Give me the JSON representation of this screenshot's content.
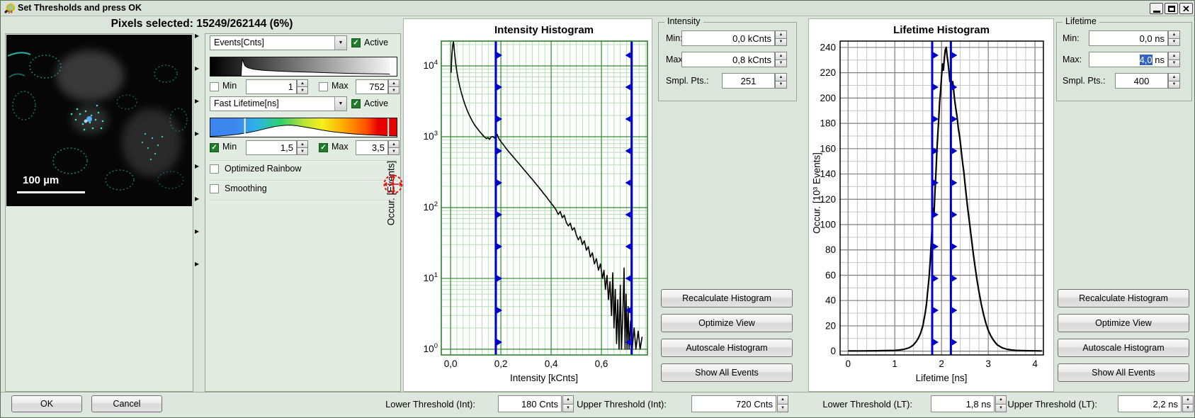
{
  "window": {
    "title": "Set Thresholds and press OK"
  },
  "icons": {
    "dropdown": "▼",
    "spin_up": "▲",
    "spin_down": "▼",
    "check": "✓",
    "triangle_right": "▶",
    "close": "✕"
  },
  "header": {
    "pixels_selected": "Pixels selected: 15249/262144 (6%)"
  },
  "image_panel": {
    "scale_bar": "100 µm"
  },
  "display_controls": {
    "channel1": {
      "name": "Events[Cnts]",
      "active_label": "Active",
      "active_checked": true,
      "min_label": "Min",
      "min_value": "1",
      "min_checked": false,
      "max_label": "Max",
      "max_value": "752",
      "max_checked": false,
      "hist": [
        [
          0,
          0
        ],
        [
          0.165,
          0
        ],
        [
          0.168,
          0.55
        ],
        [
          0.172,
          0.92
        ],
        [
          0.178,
          0.72
        ],
        [
          0.185,
          0.55
        ],
        [
          0.2,
          0.44
        ],
        [
          0.23,
          0.36
        ],
        [
          0.28,
          0.3
        ],
        [
          0.35,
          0.26
        ],
        [
          0.45,
          0.22
        ],
        [
          0.55,
          0.19
        ],
        [
          0.65,
          0.16
        ],
        [
          0.75,
          0.13
        ],
        [
          0.85,
          0.11
        ],
        [
          0.93,
          0.1
        ],
        [
          0.965,
          0.09
        ],
        [
          0.965,
          0
        ]
      ],
      "markers": [
        0.967
      ]
    },
    "channel2": {
      "name": "Fast Lifetime[ns]",
      "active_label": "Active",
      "active_checked": true,
      "min_label": "Min",
      "min_value": "1,5",
      "min_checked": true,
      "max_label": "Max",
      "max_value": "3,5",
      "max_checked": true,
      "hist": [
        [
          0,
          0.02
        ],
        [
          0.05,
          0.04
        ],
        [
          0.1,
          0.08
        ],
        [
          0.15,
          0.14
        ],
        [
          0.2,
          0.22
        ],
        [
          0.25,
          0.32
        ],
        [
          0.3,
          0.45
        ],
        [
          0.35,
          0.56
        ],
        [
          0.4,
          0.62
        ],
        [
          0.43,
          0.63
        ],
        [
          0.46,
          0.6
        ],
        [
          0.5,
          0.54
        ],
        [
          0.55,
          0.45
        ],
        [
          0.6,
          0.36
        ],
        [
          0.65,
          0.28
        ],
        [
          0.7,
          0.22
        ],
        [
          0.75,
          0.17
        ],
        [
          0.8,
          0.13
        ],
        [
          0.85,
          0.1
        ],
        [
          0.9,
          0.08
        ],
        [
          0.95,
          0.06
        ],
        [
          1,
          0.05
        ]
      ],
      "markers": [
        0.185,
        0.955
      ]
    },
    "optimized_rainbow_label": "Optimized Rainbow",
    "optimized_rainbow_checked": false,
    "smoothing_label": "Smoothing",
    "smoothing_checked": false
  },
  "intensity_panel": {
    "group_title": "Intensity",
    "min_label": "Min:",
    "min_value": "0,0 kCnts",
    "max_label": "Max:",
    "max_value": "0,8 kCnts",
    "smpl_label": "Smpl. Pts.:",
    "smpl_value": "251",
    "buttons": [
      "Recalculate Histogram",
      "Optimize View",
      "Autoscale Histogram",
      "Show All Events"
    ]
  },
  "lifetime_panel": {
    "group_title": "Lifetime",
    "min_label": "Min:",
    "min_value": "0,0 ns",
    "max_label": "Max:",
    "max_value_selected": "4,0",
    "max_value_unit": " ns",
    "smpl_label": "Smpl. Pts.:",
    "smpl_value": "400",
    "buttons": [
      "Recalculate Histogram",
      "Optimize View",
      "Autoscale Histogram",
      "Show All Events"
    ]
  },
  "footer": {
    "ok": "OK",
    "cancel": "Cancel",
    "lower_int_label": "Lower Threshold (Int):",
    "lower_int_value": "180 Cnts",
    "upper_int_label": "Upper Threshold (Int):",
    "upper_int_value": "720 Cnts",
    "lower_lt_label": "Lower Threshold (LT):",
    "lower_lt_value": "1,8 ns",
    "upper_lt_label": "Upper Threshold (LT):",
    "upper_lt_value": "2,2 ns"
  },
  "chart_data": [
    {
      "type": "line",
      "title": "Intensity Histogram",
      "xlabel": "Intensity [kCnts]",
      "ylabel": "Occur. [Events]",
      "yscale": "log",
      "ylim": [
        0.83,
        22400
      ],
      "y_decades": [
        0,
        1,
        2,
        3,
        4
      ],
      "xlim": [
        -0.037,
        0.783
      ],
      "xticks": [
        0,
        0.2,
        0.4,
        0.6
      ],
      "xtick_labels": [
        "0,0",
        "0,2",
        "0,4",
        "0,6"
      ],
      "x_minor_step": 0.025,
      "thresholds": [
        0.18,
        0.72
      ],
      "threshold_marker_dirs": [
        "right",
        "left"
      ],
      "threshold_color": "#0000cc",
      "frame_color": "#1f7a1f",
      "grid_major_color": "#2d8c2d",
      "grid_minor_color": "#b9ddb9",
      "curve_width": 1.6,
      "points": [
        [
          0.002,
          8000
        ],
        [
          0.005,
          14000
        ],
        [
          0.008,
          19000
        ],
        [
          0.011,
          22000
        ],
        [
          0.013,
          20000
        ],
        [
          0.016,
          15000
        ],
        [
          0.02,
          11000
        ],
        [
          0.025,
          8200
        ],
        [
          0.03,
          6500
        ],
        [
          0.036,
          5200
        ],
        [
          0.042,
          4300
        ],
        [
          0.05,
          3400
        ],
        [
          0.058,
          2800
        ],
        [
          0.066,
          2350
        ],
        [
          0.075,
          2000
        ],
        [
          0.085,
          1700
        ],
        [
          0.095,
          1480
        ],
        [
          0.105,
          1320
        ],
        [
          0.115,
          1190
        ],
        [
          0.125,
          1080
        ],
        [
          0.135,
          990
        ],
        [
          0.143,
          940
        ],
        [
          0.149,
          970
        ],
        [
          0.155,
          920
        ],
        [
          0.161,
          990
        ],
        [
          0.168,
          1010
        ],
        [
          0.174,
          960
        ],
        [
          0.18,
          1000
        ],
        [
          0.185,
          1080
        ],
        [
          0.19,
          970
        ],
        [
          0.196,
          890
        ],
        [
          0.203,
          830
        ],
        [
          0.21,
          770
        ],
        [
          0.218,
          705
        ],
        [
          0.226,
          650
        ],
        [
          0.234,
          600
        ],
        [
          0.243,
          550
        ],
        [
          0.252,
          505
        ],
        [
          0.261,
          462
        ],
        [
          0.27,
          425
        ],
        [
          0.28,
          385
        ],
        [
          0.29,
          350
        ],
        [
          0.3,
          318
        ],
        [
          0.31,
          288
        ],
        [
          0.32,
          262
        ],
        [
          0.33,
          238
        ],
        [
          0.34,
          215
        ],
        [
          0.35,
          195
        ],
        [
          0.36,
          176
        ],
        [
          0.37,
          158
        ],
        [
          0.38,
          143
        ],
        [
          0.39,
          128
        ],
        [
          0.4,
          115
        ],
        [
          0.41,
          104
        ],
        [
          0.42,
          92
        ],
        [
          0.428,
          80
        ],
        [
          0.436,
          88
        ],
        [
          0.444,
          72
        ],
        [
          0.452,
          78
        ],
        [
          0.46,
          62
        ],
        [
          0.468,
          55
        ],
        [
          0.476,
          60
        ],
        [
          0.484,
          48
        ],
        [
          0.492,
          52
        ],
        [
          0.5,
          41
        ],
        [
          0.508,
          35
        ],
        [
          0.516,
          39
        ],
        [
          0.524,
          30
        ],
        [
          0.532,
          34
        ],
        [
          0.54,
          25
        ],
        [
          0.548,
          28
        ],
        [
          0.556,
          20
        ],
        [
          0.564,
          23
        ],
        [
          0.572,
          16
        ],
        [
          0.58,
          19
        ],
        [
          0.588,
          13
        ],
        [
          0.596,
          16
        ],
        [
          0.604,
          10
        ],
        [
          0.61,
          13
        ],
        [
          0.616,
          7
        ],
        [
          0.622,
          11
        ],
        [
          0.628,
          5
        ],
        [
          0.634,
          9
        ],
        [
          0.64,
          3
        ],
        [
          0.645,
          12
        ],
        [
          0.65,
          2
        ],
        [
          0.655,
          7
        ],
        [
          0.66,
          1.2
        ],
        [
          0.665,
          5
        ],
        [
          0.67,
          1
        ],
        [
          0.675,
          8
        ],
        [
          0.68,
          1
        ],
        [
          0.685,
          3
        ],
        [
          0.69,
          14
        ],
        [
          0.694,
          1
        ],
        [
          0.698,
          6
        ],
        [
          0.702,
          1
        ],
        [
          0.706,
          4
        ],
        [
          0.71,
          1
        ],
        [
          0.716,
          2.5
        ],
        [
          0.722,
          1
        ],
        [
          0.73,
          2
        ],
        [
          0.737,
          1
        ],
        [
          0.746,
          1.8
        ],
        [
          0.754,
          1
        ],
        [
          0.762,
          1.5
        ]
      ]
    },
    {
      "type": "line",
      "title": "Lifetime Histogram",
      "xlabel": "Lifetime [ns]",
      "ylabel": "Occur. [10³ Events]",
      "yscale": "linear",
      "ylim": [
        -3,
        245
      ],
      "yticks": [
        0,
        20,
        40,
        60,
        80,
        100,
        120,
        140,
        160,
        180,
        200,
        220,
        240
      ],
      "y_minor_step": 10,
      "xlim": [
        -0.17,
        4.18
      ],
      "xticks": [
        0,
        1,
        2,
        3,
        4
      ],
      "xtick_labels": [
        "0",
        "1",
        "2",
        "3",
        "4"
      ],
      "x_minor_step": 0.2,
      "thresholds": [
        1.8,
        2.2
      ],
      "threshold_marker_dirs": [
        "right",
        "right"
      ],
      "threshold_color": "#0000cc",
      "frame_color": "#000000",
      "grid_major_color": "#7d7d7d",
      "grid_minor_color": "#c6c6c6",
      "curve_width": 2.2,
      "points": [
        [
          0,
          0.2
        ],
        [
          0.3,
          0.2
        ],
        [
          0.6,
          0.3
        ],
        [
          0.8,
          0.4
        ],
        [
          1.0,
          0.6
        ],
        [
          1.1,
          0.9
        ],
        [
          1.2,
          1.5
        ],
        [
          1.3,
          2.6
        ],
        [
          1.35,
          3.6
        ],
        [
          1.4,
          5
        ],
        [
          1.45,
          7.2
        ],
        [
          1.5,
          10
        ],
        [
          1.55,
          14
        ],
        [
          1.6,
          20
        ],
        [
          1.65,
          30
        ],
        [
          1.68,
          38
        ],
        [
          1.7,
          46
        ],
        [
          1.73,
          57
        ],
        [
          1.76,
          72
        ],
        [
          1.78,
          86
        ],
        [
          1.8,
          100
        ],
        [
          1.82,
          113
        ],
        [
          1.84,
          108
        ],
        [
          1.86,
          126
        ],
        [
          1.88,
          141
        ],
        [
          1.9,
          158
        ],
        [
          1.92,
          171
        ],
        [
          1.94,
          183
        ],
        [
          1.96,
          197
        ],
        [
          1.98,
          206
        ],
        [
          2.0,
          217
        ],
        [
          2.02,
          227
        ],
        [
          2.04,
          222
        ],
        [
          2.06,
          231
        ],
        [
          2.08,
          238
        ],
        [
          2.1,
          240
        ],
        [
          2.12,
          233
        ],
        [
          2.14,
          228
        ],
        [
          2.16,
          221
        ],
        [
          2.18,
          213
        ],
        [
          2.2,
          216
        ],
        [
          2.22,
          210
        ],
        [
          2.24,
          213
        ],
        [
          2.26,
          206
        ],
        [
          2.28,
          199
        ],
        [
          2.3,
          193
        ],
        [
          2.33,
          186
        ],
        [
          2.36,
          176
        ],
        [
          2.39,
          169
        ],
        [
          2.42,
          159
        ],
        [
          2.45,
          149
        ],
        [
          2.48,
          141
        ],
        [
          2.5,
          133
        ],
        [
          2.53,
          123
        ],
        [
          2.56,
          113
        ],
        [
          2.6,
          101
        ],
        [
          2.64,
          89
        ],
        [
          2.68,
          77
        ],
        [
          2.72,
          66
        ],
        [
          2.76,
          56
        ],
        [
          2.8,
          47
        ],
        [
          2.85,
          37
        ],
        [
          2.9,
          29
        ],
        [
          2.95,
          22
        ],
        [
          3.0,
          16.5
        ],
        [
          3.05,
          12.5
        ],
        [
          3.1,
          9.3
        ],
        [
          3.15,
          6.8
        ],
        [
          3.2,
          4.8
        ],
        [
          3.3,
          2.6
        ],
        [
          3.4,
          1.5
        ],
        [
          3.5,
          0.9
        ],
        [
          3.6,
          0.6
        ],
        [
          3.8,
          0.35
        ],
        [
          4.0,
          0.25
        ],
        [
          4.15,
          0.2
        ]
      ]
    }
  ]
}
